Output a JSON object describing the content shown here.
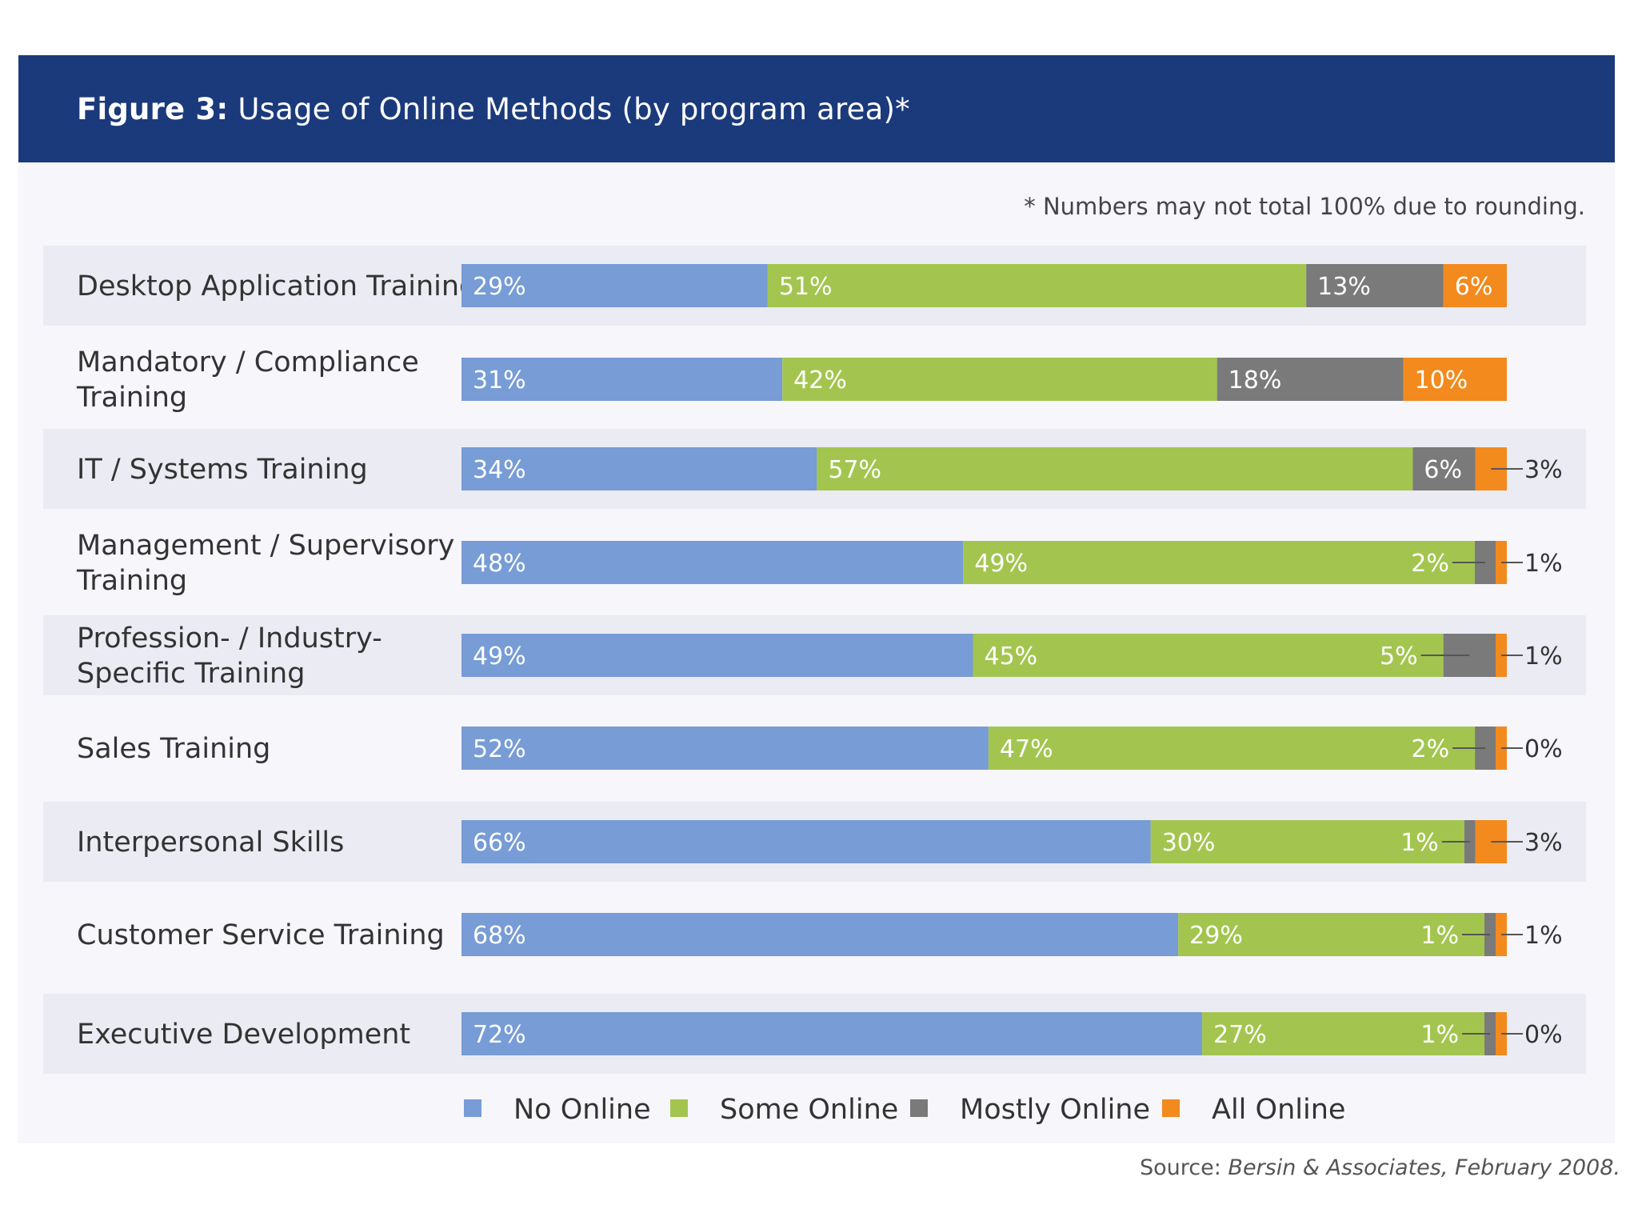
{
  "header": {
    "figure_label": "Figure 3:",
    "title": "Usage of Online Methods (by program area)*"
  },
  "note": "* Numbers may not total 100% due to rounding.",
  "source": {
    "prefix": "Source:",
    "text": "Bersin & Associates, February 2008."
  },
  "colors": {
    "header_bg": "#1b3a7c",
    "no_online": "#779cd6",
    "some_online": "#a3c54f",
    "mostly_online": "#7a7a7a",
    "all_online": "#f28a1e",
    "row_stripe": "#ebebf3"
  },
  "chart_data": {
    "type": "bar",
    "orientation": "horizontal",
    "stacked": true,
    "title": "Usage of Online Methods (by program area)*",
    "categories": [
      [
        "Desktop Application Training"
      ],
      [
        "Mandatory / Compliance",
        "Training"
      ],
      [
        "IT / Systems Training"
      ],
      [
        "Management / Supervisory",
        "Training"
      ],
      [
        "Profession- / Industry-",
        "Specific Training"
      ],
      [
        "Sales Training"
      ],
      [
        "Interpersonal Skills"
      ],
      [
        "Customer Service Training"
      ],
      [
        "Executive Development"
      ]
    ],
    "series": [
      {
        "name": "No Online",
        "color": "#779cd6",
        "values": [
          29,
          31,
          34,
          48,
          49,
          52,
          66,
          68,
          72
        ]
      },
      {
        "name": "Some Online",
        "color": "#a3c54f",
        "values": [
          51,
          42,
          57,
          49,
          45,
          47,
          30,
          29,
          27
        ]
      },
      {
        "name": "Mostly Online",
        "color": "#7a7a7a",
        "values": [
          13,
          18,
          6,
          2,
          5,
          2,
          1,
          1,
          1
        ]
      },
      {
        "name": "All Online",
        "color": "#f28a1e",
        "values": [
          6,
          10,
          3,
          1,
          1,
          0,
          3,
          1,
          0
        ]
      }
    ],
    "xlim": [
      0,
      100
    ],
    "legend": "bottom",
    "grid": false
  }
}
